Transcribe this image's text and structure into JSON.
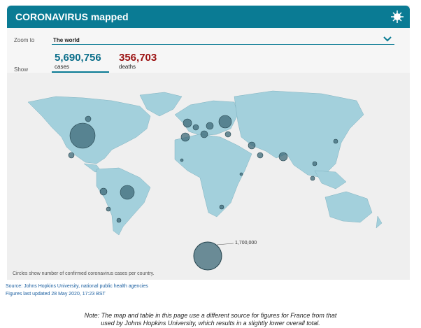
{
  "header": {
    "title": "CORONAVIRUS mapped"
  },
  "controls": {
    "zoom_label": "Zoom to",
    "zoom_value": "The world",
    "show_label": "Show"
  },
  "stats": {
    "cases": {
      "value": "5,690,756",
      "label": "cases"
    },
    "deaths": {
      "value": "356,703",
      "label": "deaths"
    }
  },
  "legend": {
    "size_label": "1,700,000"
  },
  "map": {
    "caption": "Circles show number of confirmed coronavirus cases per country."
  },
  "footer": {
    "source": "Source: Johns Hopkins University, national public health agencies",
    "updated": "Figures last updated 28 May 2020, 17:23 BST"
  },
  "note": [
    "Note: The map and table in this page use a different source for figures for France from that",
    "used by Johns Hopkins University, which results in a slightly lower overall total."
  ]
}
